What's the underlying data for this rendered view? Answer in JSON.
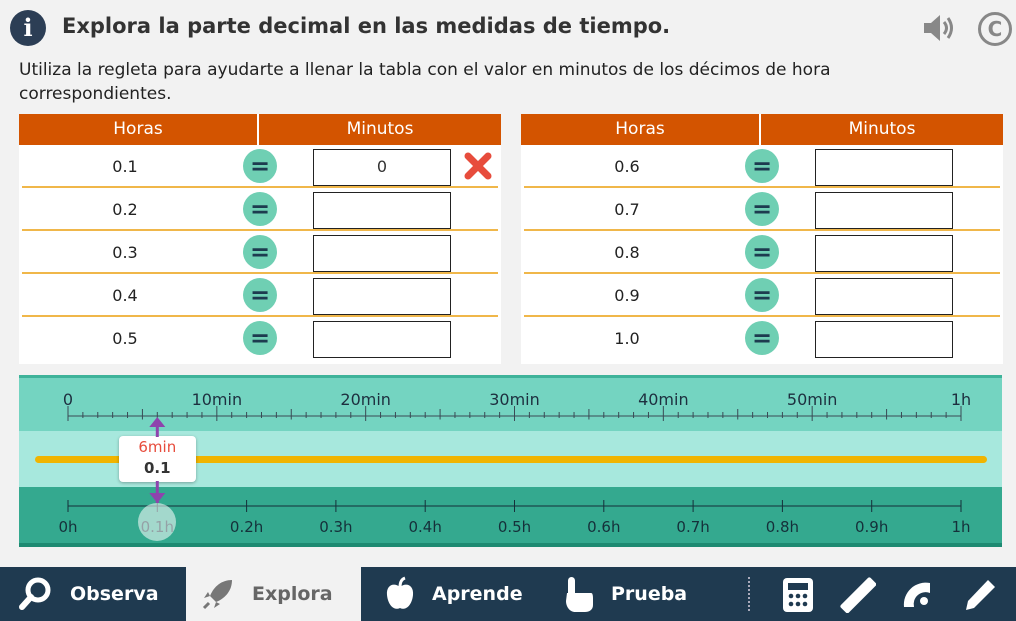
{
  "header": {
    "title": "Explora la parte decimal en las medidas de tiempo.",
    "info_icon": "info-icon",
    "icons": [
      "speaker-icon",
      "copyright-icon"
    ]
  },
  "instructions": "Utiliza la regleta para ayudarte a llenar la tabla con el valor en minutos de los décimos de hora correspondientes.",
  "table_left": {
    "col_horas": "Horas",
    "col_minutos": "Minutos",
    "rows": [
      {
        "horas": "0.1",
        "minutos": "0",
        "incorrect": true
      },
      {
        "horas": "0.2",
        "minutos": ""
      },
      {
        "horas": "0.3",
        "minutos": ""
      },
      {
        "horas": "0.4",
        "minutos": ""
      },
      {
        "horas": "0.5",
        "minutos": ""
      }
    ]
  },
  "table_right": {
    "col_horas": "Horas",
    "col_minutos": "Minutos",
    "rows": [
      {
        "horas": "0.6",
        "minutos": ""
      },
      {
        "horas": "0.7",
        "minutos": ""
      },
      {
        "horas": "0.8",
        "minutos": ""
      },
      {
        "horas": "0.9",
        "minutos": ""
      },
      {
        "horas": "1.0",
        "minutos": ""
      }
    ]
  },
  "equals_symbol": "=",
  "ruler": {
    "minute_labels": [
      "0",
      "10min",
      "20min",
      "30min",
      "40min",
      "50min",
      "1h"
    ],
    "hour_labels": [
      "0h",
      "0.1h",
      "0.2h",
      "0.3h",
      "0.4h",
      "0.5h",
      "0.6h",
      "0.7h",
      "0.8h",
      "0.9h",
      "1h"
    ],
    "marker_minutes": "6min",
    "marker_hours": "0.1",
    "marker_fraction": 0.1
  },
  "nav": {
    "observa": "Observa",
    "explora": "Explora",
    "aprende": "Aprende",
    "prueba": "Prueba"
  },
  "colors": {
    "header_orange": "#d35400",
    "equals_teal": "#6fcfb3",
    "nav_dark": "#1f3a50",
    "error_red": "#e74c3c"
  }
}
